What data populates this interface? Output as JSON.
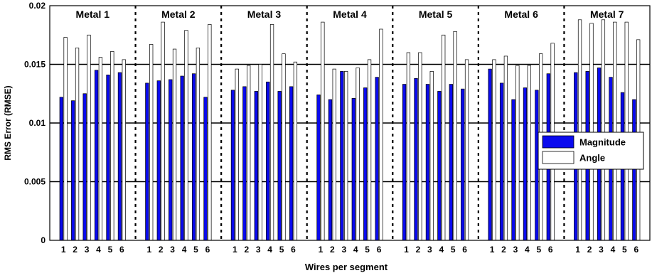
{
  "chart_data": {
    "type": "bar",
    "xlabel": "Wires per segment",
    "ylabel": "RMS Error (RMSE)",
    "ylim": [
      0,
      0.02
    ],
    "yticks": [
      "0",
      "0.005",
      "0.01",
      "0.015",
      "0.02"
    ],
    "grid": "horizontal",
    "legend_position": "right",
    "group_labels": [
      "Metal 1",
      "Metal 2",
      "Metal 3",
      "Metal 4",
      "Metal 5",
      "Metal 6",
      "Metal 7"
    ],
    "categories": [
      "1",
      "2",
      "3",
      "4",
      "5",
      "6"
    ],
    "series": [
      {
        "name": "Magnitude",
        "color": "#0a0aee",
        "values": [
          [
            0.0122,
            0.0119,
            0.0125,
            0.0145,
            0.0141,
            0.0143
          ],
          [
            0.0134,
            0.0136,
            0.0137,
            0.014,
            0.0142,
            0.0122
          ],
          [
            0.0128,
            0.0131,
            0.0127,
            0.0135,
            0.0127,
            0.0131
          ],
          [
            0.0124,
            0.012,
            0.0144,
            0.0121,
            0.013,
            0.0139
          ],
          [
            0.0133,
            0.0138,
            0.0133,
            0.0127,
            0.0133,
            0.0129
          ],
          [
            0.0146,
            0.0134,
            0.012,
            0.013,
            0.0128,
            0.0142
          ],
          [
            0.0143,
            0.0144,
            0.0147,
            0.0139,
            0.0126,
            0.012
          ]
        ]
      },
      {
        "name": "Angle",
        "color": "#ffffff",
        "values": [
          [
            0.0173,
            0.0164,
            0.0175,
            0.0156,
            0.0161,
            0.0154
          ],
          [
            0.0167,
            0.0186,
            0.0163,
            0.0179,
            0.0164,
            0.0184
          ],
          [
            0.0146,
            0.0149,
            0.015,
            0.0184,
            0.0159,
            0.0152
          ],
          [
            0.0186,
            0.0146,
            0.0144,
            0.0147,
            0.0154,
            0.018
          ],
          [
            0.016,
            0.016,
            0.0144,
            0.0175,
            0.0178,
            0.0154
          ],
          [
            0.0154,
            0.0157,
            0.0149,
            0.0149,
            0.0159,
            0.0168
          ],
          [
            0.0188,
            0.0185,
            0.0188,
            0.0186,
            0.0186,
            0.0171
          ]
        ]
      }
    ]
  }
}
